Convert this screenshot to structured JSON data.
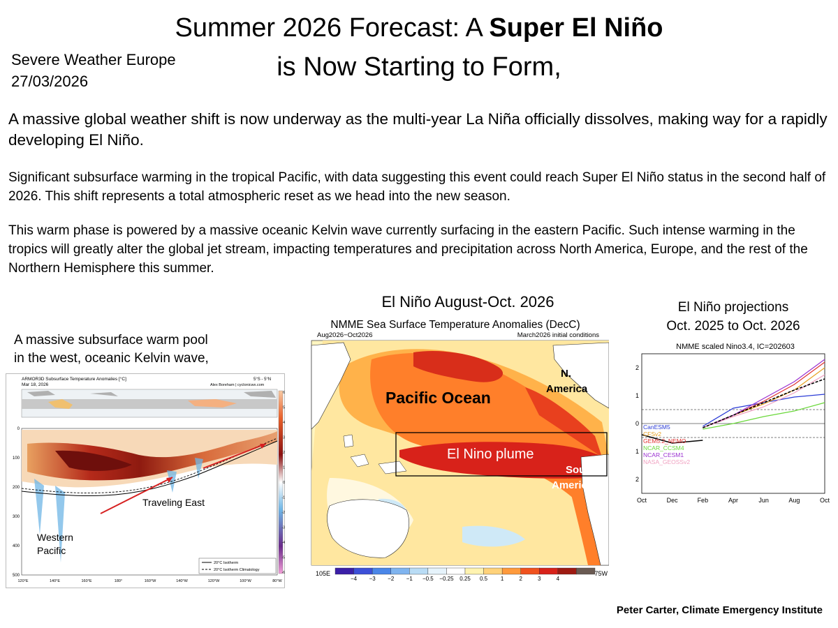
{
  "title": {
    "line1_prefix": "Summer 2026 Forecast: A ",
    "line1_bold": "Super El Niño",
    "line2": "is Now Starting to Form,"
  },
  "source": {
    "publisher": "Severe Weather Europe",
    "date": "27/03/2026"
  },
  "paragraphs": {
    "lead": "A massive global weather shift is now underway as the multi-year La Niña officially dissolves, making way for a rapidly developing El Niño.",
    "second": "Significant subsurface warming in the tropical Pacific, with data suggesting this event could reach Super El Niño status in the second half of 2026. This shift represents a total atmospheric reset as we head into the new season.",
    "third": "This warm phase is powered by a massive oceanic Kelvin wave currently surfacing in the eastern Pacific. Such intense warming in the tropics will greatly alter the global jet stream, impacting temperatures and precipitation across North America, Europe, and the rest of the Northern Hemisphere this summer."
  },
  "captions": {
    "left_line1": "A massive subsurface warm pool",
    "left_line2": "in the west, oceanic Kelvin wave,",
    "middle": "El Niño August-Oct. 2026",
    "right_line1": "El Niño  projections",
    "right_line2": "Oct. 2025 to Oct. 2026"
  },
  "left_panel": {
    "header_title": "ARMOR3D Subsurface Temperature Anomalies [°C]",
    "header_date": "Mar 18, 2026",
    "header_lat": "5°S - 5°N",
    "header_author": "Alex Boreham | cyclonicwx.com",
    "depth_ticks": [
      "0",
      "100",
      "200",
      "300",
      "400",
      "500"
    ],
    "lon_ticks": [
      "120°E",
      "140°E",
      "160°E",
      "180°",
      "160°W",
      "140°W",
      "120°W",
      "100°W",
      "80°W"
    ],
    "colorbar_ticks": [
      "6",
      "5",
      "4",
      "3",
      "2",
      "1",
      "0",
      "-1",
      "-2",
      "-3",
      "-4",
      "-5",
      "-6"
    ],
    "annotation_east": "Traveling East",
    "annotation_west_1": "Western",
    "annotation_west_2": "Pacific",
    "legend_1": "20°C Isotherm",
    "legend_2": "20°C Isotherm Climatology",
    "colors": {
      "warm": "#c0392b",
      "dark_warm": "#7b1010",
      "cool": "#6fb6e6",
      "arrow": "#d62020"
    }
  },
  "middle_panel": {
    "map_title": "NMME Sea Surface Temperature Anomalies (DecC)",
    "period": "Aug2026−Oct2026",
    "init": "March2026 initial conditions",
    "label_ocean": "Pacific Ocean",
    "label_na_1": "N.",
    "label_na_2": "America",
    "label_sa_1": "South",
    "label_sa_2": "America",
    "label_plume": "El Nino plume",
    "lon_left": "105E",
    "lon_right": "75W",
    "scale_labels": [
      "−4",
      "−3",
      "−2",
      "−1",
      "−0.5",
      "−0.25",
      "0.25",
      "0.5",
      "1",
      "2",
      "3",
      "4"
    ],
    "scale_colors": [
      "#3b1fa8",
      "#3c50d8",
      "#4a86e8",
      "#7fb4ef",
      "#b9dcf5",
      "#e6f3fb",
      "#ffffff",
      "#fff3b0",
      "#ffd27a",
      "#ff9a3c",
      "#f0521e",
      "#d8221a",
      "#9e1a12",
      "#6a5a52"
    ]
  },
  "projection_chart": {
    "type": "line",
    "title": "NMME scaled Nino3.4, IC=202603",
    "x": [
      "Oct",
      "Dec",
      "Feb",
      "Apr",
      "Jun",
      "Aug",
      "Oct"
    ],
    "ylim": [
      -2.5,
      2.5
    ],
    "yticks": [
      2,
      1,
      0,
      1,
      2
    ],
    "observed": {
      "color": "#000000",
      "values": [
        -0.4,
        -0.7,
        -0.6
      ]
    },
    "series": [
      {
        "name": "CanESM5",
        "color": "#2a3bd6",
        "values": [
          -0.1,
          0.55,
          0.75,
          0.95,
          1.05
        ]
      },
      {
        "name": "CFSv2",
        "color": "#e8a020",
        "values": [
          -0.15,
          0.3,
          0.7,
          1.2,
          2.0
        ]
      },
      {
        "name": "GEM5.2_NEMO",
        "color": "#e03030",
        "values": [
          -0.15,
          0.3,
          0.8,
          1.4,
          2.2
        ]
      },
      {
        "name": "NCAR_CCSM4",
        "color": "#6ad83a",
        "values": [
          -0.2,
          0.0,
          0.25,
          0.45,
          0.75
        ]
      },
      {
        "name": "NCAR_CESM1",
        "color": "#9a30d0",
        "values": [
          -0.15,
          0.3,
          0.9,
          1.5,
          2.3
        ]
      },
      {
        "name": "NASA_GEOSSv2",
        "color": "#f0a0c0",
        "values": [
          -0.15,
          0.25,
          0.6,
          1.1,
          1.75
        ]
      }
    ],
    "ensemble_mean": {
      "color": "#000000",
      "values": [
        -0.15,
        0.3,
        0.75,
        1.2,
        1.6
      ]
    },
    "thresholds": [
      0.5,
      -0.5
    ]
  },
  "credit": "Peter Carter, Climate Emergency Institute"
}
